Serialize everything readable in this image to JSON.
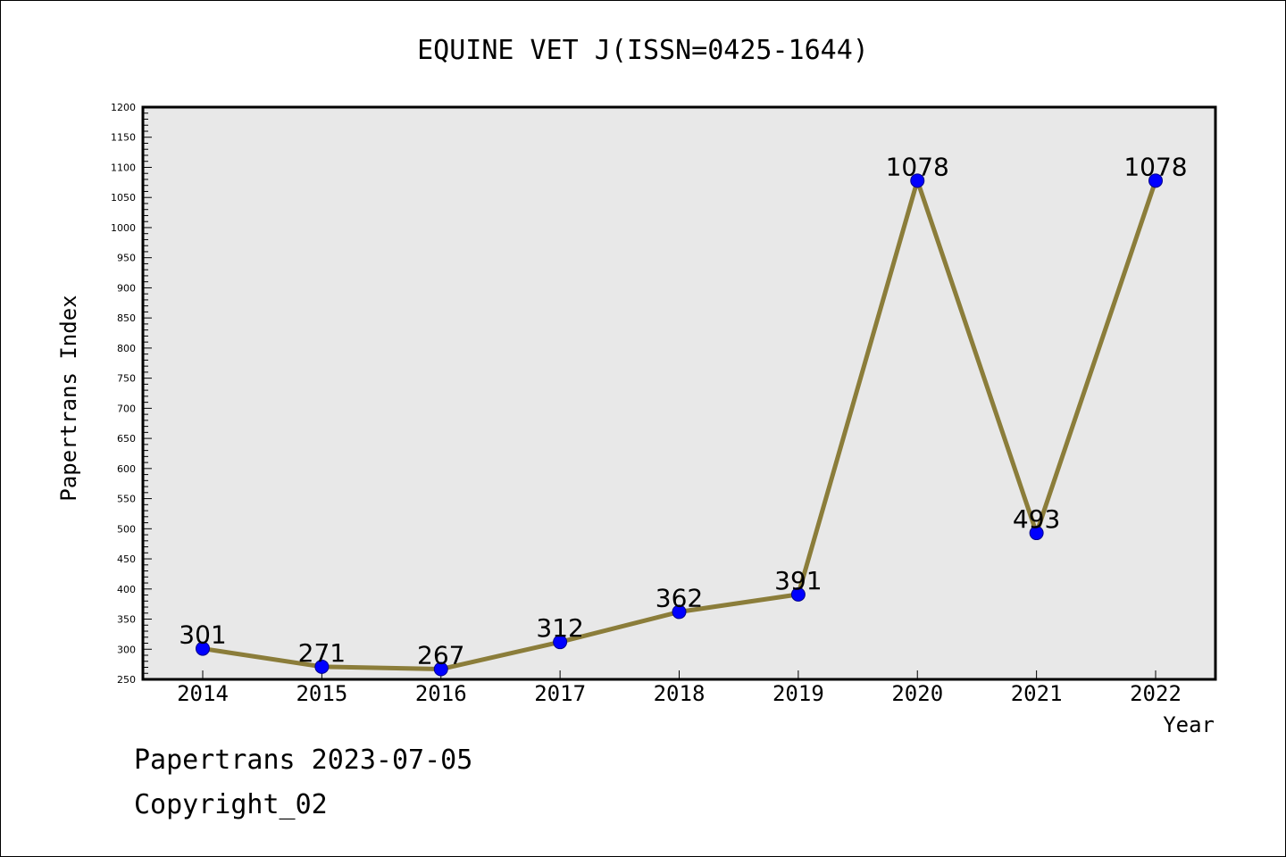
{
  "footer": {
    "line1": "Papertrans 2023-07-05",
    "line2": "Copyright_02"
  },
  "colors": {
    "background": "#ffffff",
    "plot_background": "#e8e8e8",
    "line": "#8b7d3a",
    "marker_fill": "#0000ff",
    "marker_stroke": "#00008b",
    "axis": "#000000"
  },
  "chart_data": {
    "type": "line",
    "title": "EQUINE VET J(ISSN=0425-1644)",
    "xlabel": "Year",
    "ylabel": "Papertrans Index",
    "categories": [
      "2014",
      "2015",
      "2016",
      "2017",
      "2018",
      "2019",
      "2020",
      "2021",
      "2022"
    ],
    "series": [
      {
        "values": [
          301,
          271,
          267,
          312,
          362,
          391,
          1078,
          493,
          1078
        ]
      }
    ],
    "data_labels": [
      "301",
      "271",
      "267",
      "312",
      "362",
      "391",
      "1078",
      "493",
      "1078"
    ],
    "ylim": [
      250,
      1200
    ],
    "yticks": [
      "250",
      "300",
      "350",
      "400",
      "450",
      "500",
      "550",
      "600",
      "650",
      "700",
      "750",
      "800",
      "850",
      "900",
      "950",
      "1000",
      "1050",
      "1100",
      "1150",
      "1200"
    ],
    "grid": false,
    "legend": "none"
  }
}
